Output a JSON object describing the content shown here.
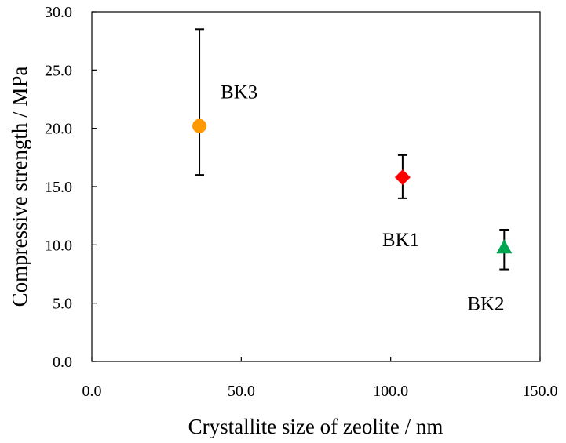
{
  "chart_data": {
    "type": "scatter",
    "title": "",
    "xlabel": "Crystallite size of  zeolite / nm",
    "ylabel": "Compressive strength / MPa",
    "xlim": [
      0,
      150
    ],
    "ylim": [
      0,
      30
    ],
    "x_ticks": [
      "0.0",
      "50.0",
      "100.0",
      "150.0"
    ],
    "y_ticks": [
      "0.0",
      "5.0",
      "10.0",
      "15.0",
      "20.0",
      "25.0",
      "30.0"
    ],
    "grid": false,
    "legend": "none",
    "points": [
      {
        "label": "BK3",
        "x": 36,
        "y": 20.2,
        "err_low": 16.0,
        "err_high": 28.5,
        "marker": "circle",
        "color": "#ff9900"
      },
      {
        "label": "BK1",
        "x": 104,
        "y": 15.8,
        "err_low": 14.0,
        "err_high": 17.7,
        "marker": "diamond",
        "color": "#ff0000"
      },
      {
        "label": "BK2",
        "x": 138,
        "y": 9.8,
        "err_low": 7.9,
        "err_high": 11.3,
        "marker": "triangle",
        "color": "#00a651"
      }
    ]
  }
}
